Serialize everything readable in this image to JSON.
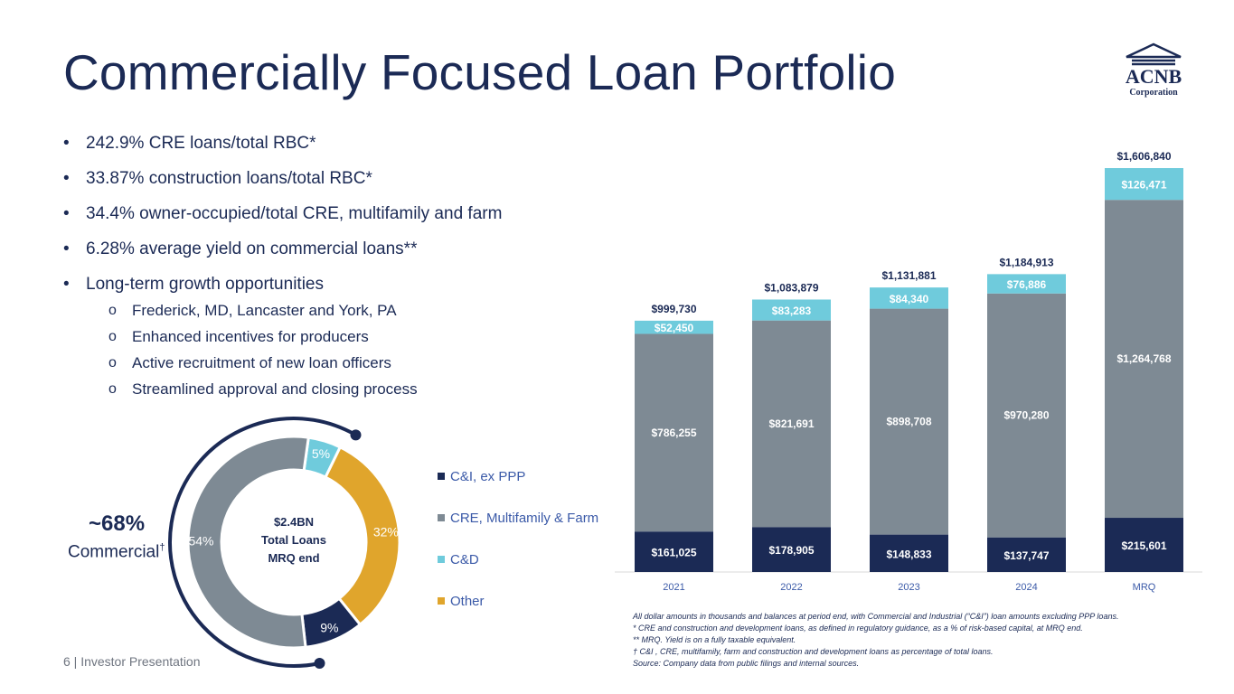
{
  "page": {
    "title": "Commercially Focused Loan Portfolio",
    "logo": {
      "name": "ACNB",
      "sub": "Corporation"
    },
    "bullets": [
      "242.9% CRE loans/total RBC*",
      "33.87% construction loans/total RBC*",
      "34.4% owner-occupied/total CRE, multifamily and farm",
      "6.28% average yield on commercial loans**",
      "Long-term growth opportunities"
    ],
    "sub_bullets": [
      "Frederick, MD, Lancaster and York, PA",
      "Enhanced incentives for producers",
      "Active recruitment of new loan officers",
      "Streamlined approval and closing process"
    ],
    "commercial": {
      "pct": "~68%",
      "label": "Commercial",
      "mark": "†"
    },
    "notes": [
      "All dollar amounts in thousands and balances at period end, with Commercial and Industrial (“C&I”) loan amounts excluding PPP loans.",
      "* CRE and construction and development  loans, as defined in regulatory guidance, as a % of risk-based capital, at MRQ end.",
      "** MRQ. Yield is on a fully taxable equivalent.",
      "† C&I , CRE, multifamily, farm and construction and development loans as percentage of total loans.",
      "Source: Company data from public filings and internal sources."
    ],
    "footer": "6  | Investor Presentation"
  },
  "chart_data": [
    {
      "type": "pie",
      "variant": "donut",
      "center_label": [
        "$2.4BN",
        "Total Loans",
        "MRQ end"
      ],
      "slices": [
        {
          "name": "C&I, ex PPP",
          "value": 9,
          "label": "9%",
          "color": "#1b2a55"
        },
        {
          "name": "CRE, Multifamily & Farm",
          "value": 54,
          "label": "54%",
          "color": "#7e8a94"
        },
        {
          "name": "C&D",
          "value": 5,
          "label": "5%",
          "color": "#6fcbdc"
        },
        {
          "name": "Other",
          "value": 32,
          "label": "32%",
          "color": "#e0a52c"
        }
      ],
      "legend_position": "right"
    },
    {
      "type": "bar",
      "stacked": true,
      "categories": [
        "2021",
        "2022",
        "2023",
        "2024",
        "MRQ"
      ],
      "series": [
        {
          "values": [
            161025,
            178905,
            148833,
            137747,
            215601
          ],
          "labels": [
            "$161,025",
            "$178,905",
            "$148,833",
            "$137,747",
            "$215,601"
          ],
          "color": "#1b2a55",
          "label_color": "#ffffff"
        },
        {
          "values": [
            786255,
            821691,
            898708,
            970280,
            1264768
          ],
          "labels": [
            "$786,255",
            "$821,691",
            "$898,708",
            "$970,280",
            "$1,264,768"
          ],
          "color": "#7e8a94",
          "label_color": "#ffffff"
        },
        {
          "values": [
            52450,
            83283,
            84340,
            76886,
            126471
          ],
          "labels": [
            "$52,450",
            "$83,283",
            "$84,340",
            "$76,886",
            "$126,471"
          ],
          "color": "#6fcbdc",
          "label_color": "#ffffff"
        }
      ],
      "totals": [
        999730,
        1083879,
        1131881,
        1184913,
        1606840
      ],
      "total_labels": [
        "$999,730",
        "$1,083,879",
        "$1,131,881",
        "$1,184,913",
        "$1,606,840"
      ],
      "ylim": [
        0,
        1606840
      ],
      "grid": false,
      "legend": false
    }
  ]
}
